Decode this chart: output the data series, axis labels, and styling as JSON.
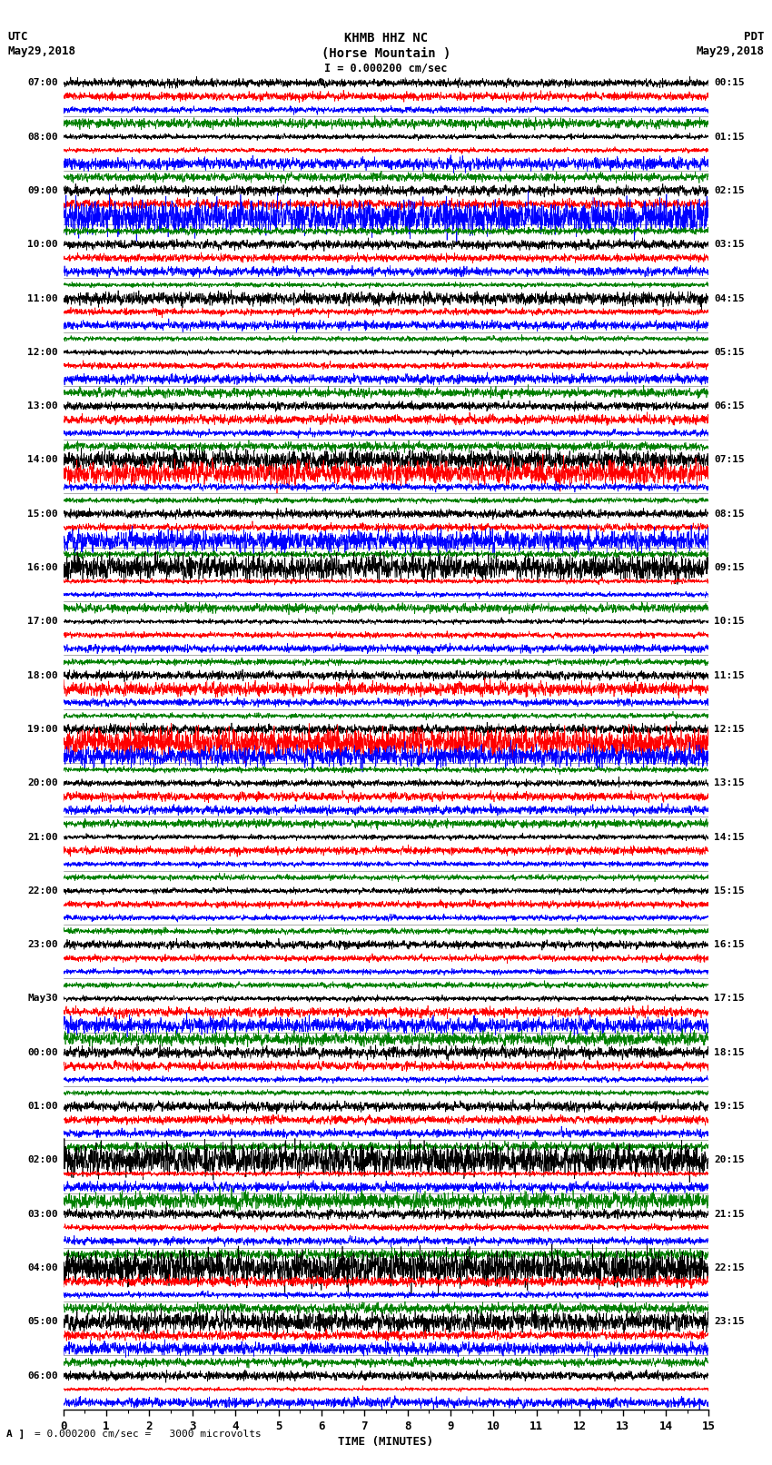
{
  "title_line1": "KHMB HHZ NC",
  "title_line2": "(Horse Mountain )",
  "title_line3": "I = 0.000200 cm/sec",
  "label_utc": "UTC",
  "label_date_left": "May29,2018",
  "label_pdt": "PDT",
  "label_date_right": "May29,2018",
  "xlabel": "TIME (MINUTES)",
  "scale_label": "= 0.000200 cm/sec =   3000 microvolts",
  "scale_marker": "A",
  "left_labels": [
    [
      "07:00",
      0
    ],
    [
      "08:00",
      4
    ],
    [
      "09:00",
      8
    ],
    [
      "10:00",
      12
    ],
    [
      "11:00",
      16
    ],
    [
      "12:00",
      20
    ],
    [
      "13:00",
      24
    ],
    [
      "14:00",
      28
    ],
    [
      "15:00",
      32
    ],
    [
      "16:00",
      36
    ],
    [
      "17:00",
      40
    ],
    [
      "18:00",
      44
    ],
    [
      "19:00",
      48
    ],
    [
      "20:00",
      52
    ],
    [
      "21:00",
      56
    ],
    [
      "22:00",
      60
    ],
    [
      "23:00",
      64
    ],
    [
      "May30",
      68
    ],
    [
      "00:00",
      72
    ],
    [
      "01:00",
      76
    ],
    [
      "02:00",
      80
    ],
    [
      "03:00",
      84
    ],
    [
      "04:00",
      88
    ],
    [
      "05:00",
      92
    ],
    [
      "06:00",
      96
    ]
  ],
  "right_labels": [
    [
      "00:15",
      0
    ],
    [
      "01:15",
      4
    ],
    [
      "02:15",
      8
    ],
    [
      "03:15",
      12
    ],
    [
      "04:15",
      16
    ],
    [
      "05:15",
      20
    ],
    [
      "06:15",
      24
    ],
    [
      "07:15",
      28
    ],
    [
      "08:15",
      32
    ],
    [
      "09:15",
      36
    ],
    [
      "10:15",
      40
    ],
    [
      "11:15",
      44
    ],
    [
      "12:15",
      48
    ],
    [
      "13:15",
      52
    ],
    [
      "14:15",
      56
    ],
    [
      "15:15",
      60
    ],
    [
      "16:15",
      64
    ],
    [
      "17:15",
      68
    ],
    [
      "18:15",
      72
    ],
    [
      "19:15",
      76
    ],
    [
      "20:15",
      80
    ],
    [
      "21:15",
      84
    ],
    [
      "22:15",
      88
    ],
    [
      "23:15",
      92
    ]
  ],
  "colors": [
    "black",
    "red",
    "blue",
    "green"
  ],
  "n_rows": 99,
  "time_minutes": 15,
  "background_color": "white",
  "seed": 42,
  "amplitude": 0.42,
  "linewidth": 0.5,
  "time_pts": 3000
}
